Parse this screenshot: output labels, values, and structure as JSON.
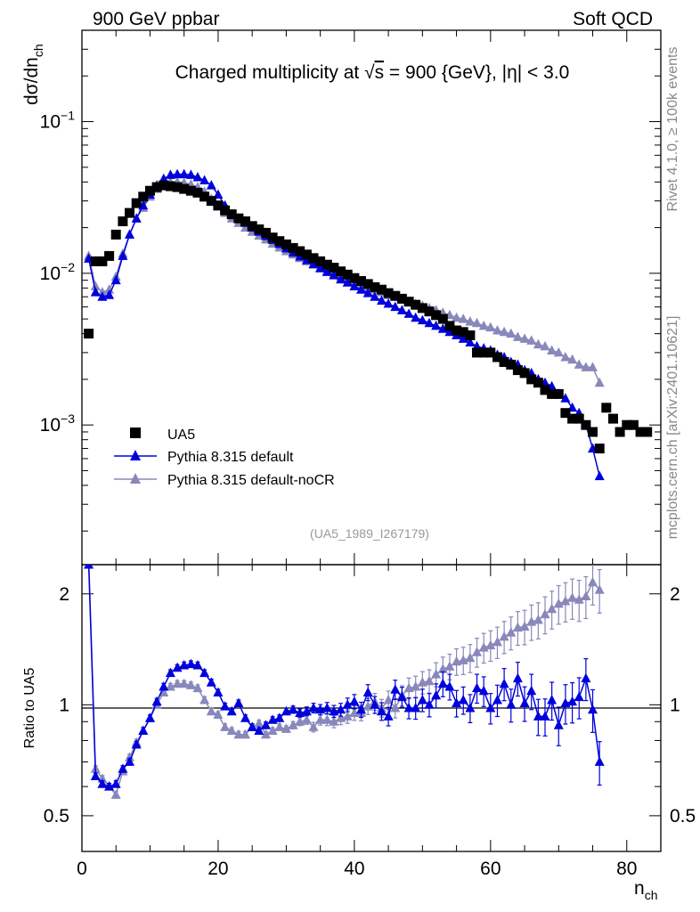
{
  "header": {
    "left": "900 GeV ppbar",
    "right": "Soft QCD"
  },
  "side_text": {
    "top": "Rivet 4.1.0, ≥ 100k events",
    "bottom": "mcplots.cern.ch [arXiv:2401.10621]"
  },
  "colors": {
    "data": "#000000",
    "default": "#0000dd",
    "nocr": "#8888bb",
    "axis": "#000000",
    "side": "#888888"
  },
  "chart_data": {
    "type": "scatter",
    "title": "Charged multiplicity at √s = 900 {GeV}, |η| < 3.0",
    "title_parts": {
      "prefix": "Charged multiplicity at ",
      "root": "√",
      "s_symbol": "s",
      "suffix": " = 900 {GeV}, |η| < 3.0"
    },
    "analysis_id": "(UA5_1989_I267179)",
    "ylabel": "dσ/dn",
    "ylabel_sub": "ch",
    "xlabel": "n",
    "xlabel_sub": "ch",
    "ratio_ylabel": "Ratio to UA5",
    "xlim": [
      0,
      85
    ],
    "ylim_main": [
      0.00012,
      0.4
    ],
    "ylim_ratio": [
      0.4,
      2.4
    ],
    "ytick_base": "10",
    "yticks_main": [
      {
        "value": 0.1,
        "exp": "−1"
      },
      {
        "value": 0.01,
        "exp": "−2"
      },
      {
        "value": 0.001,
        "exp": "−3"
      }
    ],
    "xticks": [
      "0",
      "20",
      "40",
      "60",
      "80"
    ],
    "yticks_ratio": [
      "0.5",
      "1",
      "2"
    ],
    "legend": [
      {
        "name": "UA5",
        "marker": "square"
      },
      {
        "name": "Pythia 8.315 default",
        "marker": "triangle"
      },
      {
        "name": "Pythia 8.315 default-noCR",
        "marker": "triangle"
      }
    ],
    "legend_position": "lower-left",
    "series": [
      {
        "name": "UA5",
        "x": [
          1,
          2,
          3,
          4,
          5,
          6,
          7,
          8,
          9,
          10,
          11,
          12,
          13,
          14,
          15,
          16,
          17,
          18,
          19,
          20,
          21,
          22,
          23,
          24,
          25,
          26,
          27,
          28,
          29,
          30,
          31,
          32,
          33,
          34,
          35,
          36,
          37,
          38,
          39,
          40,
          41,
          42,
          43,
          44,
          45,
          46,
          47,
          48,
          49,
          50,
          51,
          52,
          53,
          54,
          55,
          56,
          57,
          58,
          59,
          60,
          61,
          62,
          63,
          64,
          65,
          66,
          67,
          68,
          69,
          70,
          71,
          72,
          73,
          74,
          75,
          76,
          77,
          78,
          79,
          80,
          81,
          82,
          83
        ],
        "values": [
          0.004,
          0.012,
          0.012,
          0.013,
          0.018,
          0.022,
          0.025,
          0.029,
          0.032,
          0.035,
          0.037,
          0.038,
          0.0375,
          0.037,
          0.036,
          0.035,
          0.034,
          0.032,
          0.03,
          0.028,
          0.026,
          0.0245,
          0.023,
          0.022,
          0.0205,
          0.0195,
          0.0185,
          0.0172,
          0.0163,
          0.0155,
          0.0147,
          0.014,
          0.0133,
          0.0126,
          0.012,
          0.0114,
          0.0109,
          0.0103,
          0.0098,
          0.0093,
          0.0089,
          0.0085,
          0.0081,
          0.0078,
          0.0074,
          0.0071,
          0.0068,
          0.0065,
          0.0062,
          0.0059,
          0.0056,
          0.0053,
          0.005,
          0.0045,
          0.0042,
          0.0041,
          0.0039,
          0.003,
          0.003,
          0.003,
          0.0028,
          0.0026,
          0.0025,
          0.0023,
          0.0022,
          0.002,
          0.0019,
          0.0017,
          0.0016,
          0.0016,
          0.0012,
          0.0011,
          0.0011,
          0.001,
          0.0009,
          0.0007,
          0.0013,
          0.0011,
          0.0009,
          0.001,
          0.001,
          0.0009,
          0.0009
        ]
      },
      {
        "name": "Pythia 8.315 default",
        "x": [
          1,
          2,
          3,
          4,
          5,
          6,
          7,
          8,
          9,
          10,
          11,
          12,
          13,
          14,
          15,
          16,
          17,
          18,
          19,
          20,
          21,
          22,
          23,
          24,
          25,
          26,
          27,
          28,
          29,
          30,
          31,
          32,
          33,
          34,
          35,
          36,
          37,
          38,
          39,
          40,
          41,
          42,
          43,
          44,
          45,
          46,
          47,
          48,
          49,
          50,
          51,
          52,
          53,
          54,
          55,
          56,
          57,
          58,
          59,
          60,
          61,
          62,
          63,
          64,
          65,
          66,
          67,
          68,
          69,
          70,
          71,
          72,
          73,
          74,
          75,
          76
        ],
        "values": [
          0.0125,
          0.0075,
          0.007,
          0.0072,
          0.009,
          0.013,
          0.018,
          0.023,
          0.028,
          0.033,
          0.038,
          0.042,
          0.0445,
          0.045,
          0.045,
          0.0445,
          0.043,
          0.041,
          0.038,
          0.033,
          0.028,
          0.0245,
          0.023,
          0.0215,
          0.02,
          0.0188,
          0.0176,
          0.0166,
          0.0156,
          0.0146,
          0.0137,
          0.0129,
          0.0122,
          0.0115,
          0.0108,
          0.0102,
          0.0097,
          0.0091,
          0.0087,
          0.0082,
          0.0078,
          0.0074,
          0.007,
          0.0066,
          0.0063,
          0.006,
          0.0057,
          0.0054,
          0.0051,
          0.0049,
          0.0047,
          0.0045,
          0.0043,
          0.0041,
          0.0039,
          0.0037,
          0.0035,
          0.0033,
          0.0032,
          0.0031,
          0.0029,
          0.0028,
          0.0026,
          0.0025,
          0.0023,
          0.0022,
          0.002,
          0.0019,
          0.0018,
          0.0016,
          0.0015,
          0.0013,
          0.0012,
          0.001,
          0.0007,
          0.00046
        ]
      },
      {
        "name": "Pythia 8.315 default-noCR",
        "x": [
          1,
          2,
          3,
          4,
          5,
          6,
          7,
          8,
          9,
          10,
          11,
          12,
          13,
          14,
          15,
          16,
          17,
          18,
          19,
          20,
          21,
          22,
          23,
          24,
          25,
          26,
          27,
          28,
          29,
          30,
          31,
          32,
          33,
          34,
          35,
          36,
          37,
          38,
          39,
          40,
          41,
          42,
          43,
          44,
          45,
          46,
          47,
          48,
          49,
          50,
          51,
          52,
          53,
          54,
          55,
          56,
          57,
          58,
          59,
          60,
          61,
          62,
          63,
          64,
          65,
          66,
          67,
          68,
          69,
          70,
          71,
          72,
          73,
          74,
          75,
          76
        ],
        "values": [
          0.013,
          0.0082,
          0.0075,
          0.0078,
          0.0095,
          0.0135,
          0.018,
          0.023,
          0.027,
          0.032,
          0.036,
          0.039,
          0.04,
          0.04,
          0.0395,
          0.0385,
          0.037,
          0.0345,
          0.031,
          0.0275,
          0.025,
          0.023,
          0.0215,
          0.02,
          0.0188,
          0.0177,
          0.0167,
          0.0157,
          0.0148,
          0.014,
          0.0133,
          0.0126,
          0.012,
          0.0114,
          0.0109,
          0.0104,
          0.0099,
          0.0095,
          0.0091,
          0.0088,
          0.0084,
          0.0081,
          0.0078,
          0.0075,
          0.0072,
          0.007,
          0.0067,
          0.0065,
          0.0063,
          0.0061,
          0.0059,
          0.0057,
          0.0055,
          0.0053,
          0.0051,
          0.005,
          0.0048,
          0.0047,
          0.0045,
          0.0044,
          0.0042,
          0.0041,
          0.004,
          0.0038,
          0.0037,
          0.0036,
          0.0034,
          0.0033,
          0.0031,
          0.003,
          0.0028,
          0.0027,
          0.0025,
          0.0024,
          0.0024,
          0.0019
        ]
      }
    ],
    "ratio_series": [
      {
        "name": "Pythia 8.315 default",
        "x": [
          1,
          2,
          3,
          4,
          5,
          6,
          7,
          8,
          9,
          10,
          11,
          12,
          13,
          14,
          15,
          16,
          17,
          18,
          19,
          20,
          21,
          22,
          23,
          24,
          25,
          26,
          27,
          28,
          29,
          30,
          31,
          32,
          33,
          34,
          35,
          36,
          37,
          38,
          39,
          40,
          41,
          42,
          43,
          44,
          45,
          46,
          47,
          48,
          49,
          50,
          51,
          52,
          53,
          54,
          55,
          56,
          57,
          58,
          59,
          60,
          61,
          62,
          63,
          64,
          65,
          66,
          67,
          68,
          69,
          70,
          71,
          72,
          73,
          74,
          75,
          76
        ],
        "values": [
          2.4,
          0.64,
          0.61,
          0.6,
          0.61,
          0.67,
          0.7,
          0.78,
          0.85,
          0.92,
          1.02,
          1.12,
          1.22,
          1.26,
          1.28,
          1.29,
          1.28,
          1.22,
          1.15,
          1.08,
          0.99,
          0.96,
          1.01,
          0.92,
          0.87,
          0.85,
          0.88,
          0.91,
          0.92,
          0.96,
          0.97,
          0.95,
          0.96,
          0.98,
          0.97,
          0.98,
          0.96,
          0.97,
          1.0,
          1.02,
          0.97,
          1.08,
          1.0,
          0.96,
          0.93,
          1.1,
          1.05,
          0.98,
          0.98,
          1.03,
          1.0,
          1.06,
          1.14,
          1.12,
          1.01,
          1.03,
          0.98,
          1.11,
          1.09,
          0.98,
          1.03,
          1.14,
          1.0,
          1.18,
          1.01,
          1.09,
          0.93,
          0.93,
          1.03,
          0.88,
          1.01,
          1.02,
          1.05,
          1.18,
          0.97,
          0.7
        ]
      },
      {
        "name": "Pythia 8.315 default-noCR",
        "x": [
          1,
          2,
          3,
          4,
          5,
          6,
          7,
          8,
          9,
          10,
          11,
          12,
          13,
          14,
          15,
          16,
          17,
          18,
          19,
          20,
          21,
          22,
          23,
          24,
          25,
          26,
          27,
          28,
          29,
          30,
          31,
          32,
          33,
          34,
          35,
          36,
          37,
          38,
          39,
          40,
          41,
          42,
          43,
          44,
          45,
          46,
          47,
          48,
          49,
          50,
          51,
          52,
          53,
          54,
          55,
          56,
          57,
          58,
          59,
          60,
          61,
          62,
          63,
          64,
          65,
          66,
          67,
          68,
          69,
          70,
          71,
          72,
          73,
          74,
          75,
          76
        ],
        "values": [
          2.5,
          0.67,
          0.63,
          0.6,
          0.57,
          0.66,
          0.72,
          0.79,
          0.85,
          0.92,
          1.0,
          1.08,
          1.12,
          1.14,
          1.14,
          1.13,
          1.11,
          1.03,
          0.96,
          0.94,
          0.87,
          0.85,
          0.83,
          0.83,
          0.87,
          0.89,
          0.83,
          0.85,
          0.87,
          0.86,
          0.88,
          0.9,
          0.91,
          0.87,
          0.91,
          0.91,
          0.9,
          0.92,
          0.93,
          0.95,
          0.95,
          0.99,
          1.02,
          0.98,
          1.03,
          0.98,
          1.06,
          1.11,
          1.12,
          1.15,
          1.16,
          1.21,
          1.25,
          1.27,
          1.31,
          1.32,
          1.34,
          1.39,
          1.43,
          1.45,
          1.48,
          1.53,
          1.57,
          1.62,
          1.63,
          1.68,
          1.7,
          1.76,
          1.82,
          1.88,
          1.91,
          1.95,
          1.93,
          1.97,
          2.15,
          2.05
        ]
      }
    ]
  }
}
